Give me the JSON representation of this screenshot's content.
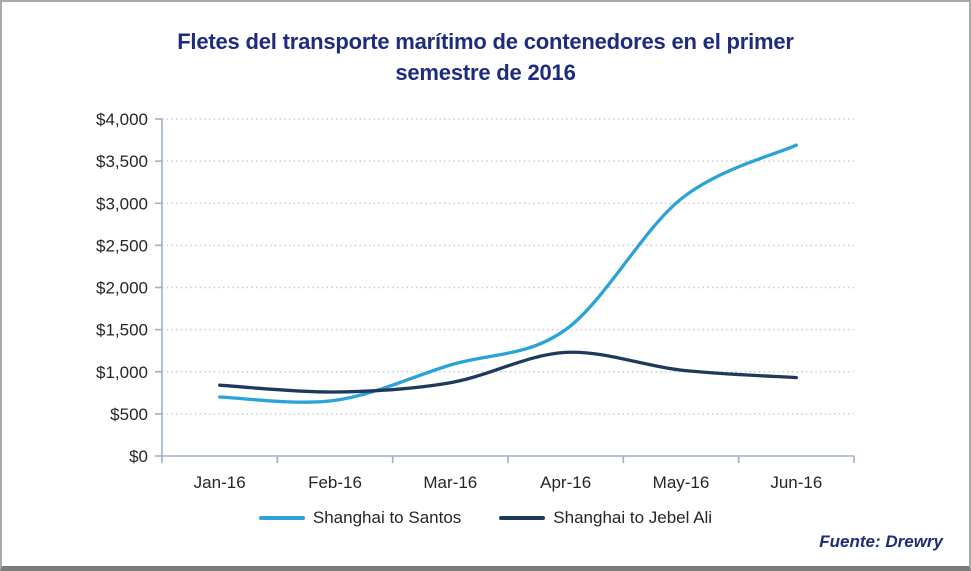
{
  "header": {
    "title_lines": [
      "Fletes del transporte marítimo de contenedores en el primer",
      "semestre de 2016"
    ]
  },
  "chart_data": {
    "type": "line",
    "title": "Fletes del transporte marítimo de contenedores en el primer semestre de 2016",
    "categories": [
      "Jan-16",
      "Feb-16",
      "Mar-16",
      "Apr-16",
      "May-16",
      "Jun-16"
    ],
    "series": [
      {
        "name": "Shanghai to Santos",
        "color": "#2BA2D9",
        "values": [
          700,
          660,
          1080,
          1500,
          3050,
          3690
        ]
      },
      {
        "name": "Shanghai to Jebel Ali",
        "color": "#1F395C",
        "values": [
          840,
          760,
          870,
          1230,
          1020,
          930
        ]
      }
    ],
    "xlabel": "",
    "ylabel": "",
    "ylim": [
      0,
      4000
    ],
    "ytick_step": 500,
    "y_tick_labels": [
      "$0",
      "$500",
      "$1,000",
      "$1,500",
      "$2,000",
      "$2,500",
      "$3,000",
      "$3,500",
      "$4,000"
    ],
    "grid": "horizontal-dotted",
    "line_style": "smooth",
    "legend_position": "bottom"
  },
  "footer": {
    "source_label": "Fuente: Drewry"
  },
  "colors": {
    "title_text": "#1F2C7E",
    "axis_text": "#262626",
    "axis_line": "#9FB0C9",
    "gridline": "#C5CEDD"
  }
}
